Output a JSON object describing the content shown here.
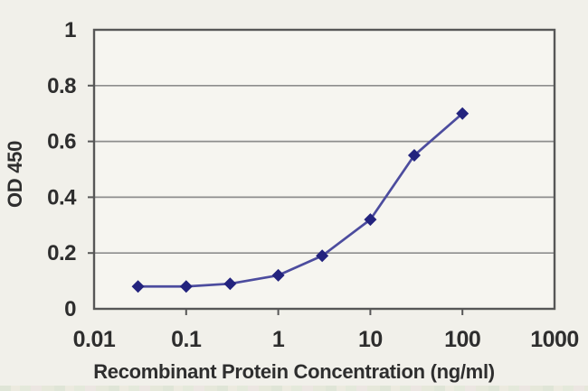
{
  "figure": {
    "description": "ELISA standard curve line chart",
    "colors": {
      "background": "#f1f0ea",
      "plot_background": "#f6f5f0",
      "frame": "#575757",
      "grid": "#8d8d8d",
      "line": "#4c4c9e",
      "marker": "#23237e",
      "text": "#2e2e2e"
    }
  },
  "chart_data": {
    "type": "line",
    "title": "",
    "xlabel": "Recombinant Protein Concentration (ng/ml)",
    "ylabel": "OD 450",
    "x_scale": "log",
    "xlim": [
      0.01,
      1000
    ],
    "ylim": [
      0,
      1
    ],
    "x_ticks": [
      0.01,
      0.1,
      1,
      10,
      100,
      1000
    ],
    "x_tick_labels": [
      "0.01",
      "0.1",
      "1",
      "10",
      "100",
      "1000"
    ],
    "y_ticks": [
      0,
      0.2,
      0.4,
      0.6,
      0.8,
      1
    ],
    "y_tick_labels": [
      "0",
      "0.2",
      "0.4",
      "0.6",
      "0.8",
      "1"
    ],
    "grid": "horizontal",
    "legend": "none",
    "marker_shape": "diamond",
    "series": [
      {
        "name": "OD 450",
        "x": [
          0.03,
          0.1,
          0.3,
          1,
          3,
          10,
          30,
          100
        ],
        "y": [
          0.08,
          0.08,
          0.09,
          0.12,
          0.19,
          0.32,
          0.55,
          0.7
        ]
      }
    ]
  }
}
